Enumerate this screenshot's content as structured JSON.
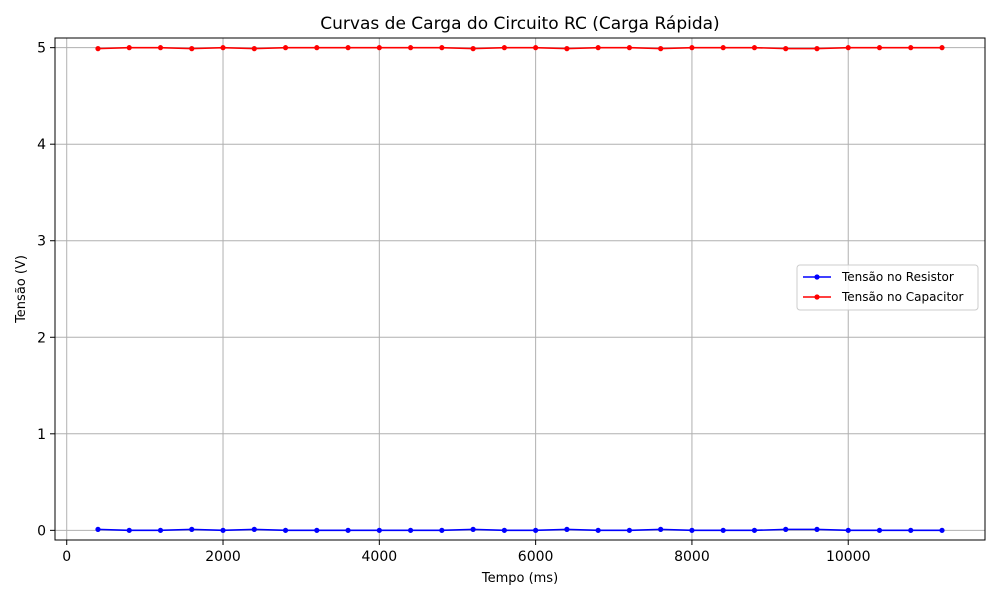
{
  "chart_data": {
    "type": "line",
    "title": "Curvas de Carga do Circuito RC (Carga Rápida)",
    "xlabel": "Tempo (ms)",
    "ylabel": "Tensão (V)",
    "xlim": [
      -150,
      11750
    ],
    "ylim": [
      -0.1,
      5.1
    ],
    "x_ticks": [
      0,
      2000,
      4000,
      6000,
      8000,
      10000
    ],
    "y_ticks": [
      0,
      1,
      2,
      3,
      4,
      5
    ],
    "grid": true,
    "legend_position": "center-right",
    "x": [
      400,
      800,
      1200,
      1600,
      2000,
      2400,
      2800,
      3200,
      3600,
      4000,
      4400,
      4800,
      5200,
      5600,
      6000,
      6400,
      6800,
      7200,
      7600,
      8000,
      8400,
      8800,
      9200,
      9600,
      10000,
      10400,
      10800,
      11200
    ],
    "series": [
      {
        "name": "Tensão no Resistor",
        "color": "#0000ff",
        "values": [
          0.01,
          0.0,
          0.0,
          0.01,
          0.0,
          0.01,
          0.0,
          0.0,
          0.0,
          0.0,
          0.0,
          0.0,
          0.01,
          0.0,
          0.0,
          0.01,
          0.0,
          0.0,
          0.01,
          0.0,
          0.0,
          0.0,
          0.01,
          0.01,
          0.0,
          0.0,
          0.0,
          0.0
        ]
      },
      {
        "name": "Tensão no Capacitor",
        "color": "#ff0000",
        "values": [
          4.99,
          5.0,
          5.0,
          4.99,
          5.0,
          4.99,
          5.0,
          5.0,
          5.0,
          5.0,
          5.0,
          5.0,
          4.99,
          5.0,
          5.0,
          4.99,
          5.0,
          5.0,
          4.99,
          5.0,
          5.0,
          5.0,
          4.99,
          4.99,
          5.0,
          5.0,
          5.0,
          5.0
        ]
      }
    ]
  }
}
